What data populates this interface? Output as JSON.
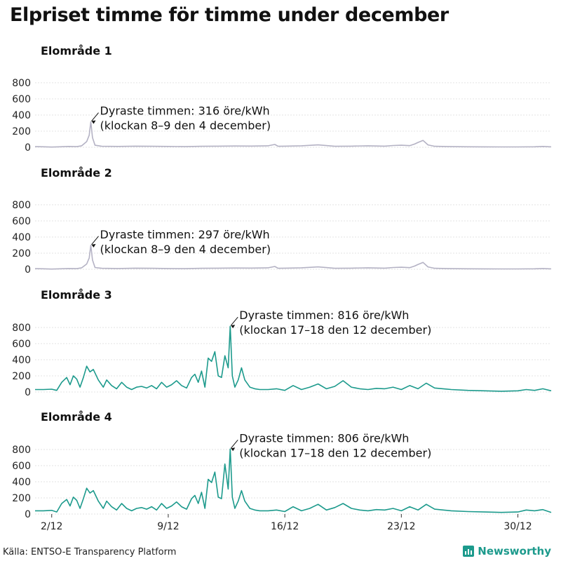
{
  "title": "Elpriset timme för timme under december",
  "source": "Källa: ENTSO-E Transparency Platform",
  "brand": "Newsworthy",
  "colors": {
    "highlight": "#1c9a8c",
    "muted": "#b4b2c4",
    "brand": "#1c9a8c"
  },
  "chart_data": [
    {
      "type": "line",
      "title": "Elområde 1",
      "color": "#b4b2c4",
      "ylim": [
        0,
        800
      ],
      "yticks": [
        0,
        200,
        400,
        600,
        800
      ],
      "xlim": [
        1,
        32
      ],
      "xticks": [
        2,
        9,
        16,
        23,
        30
      ],
      "xticklabels": [
        "2/12",
        "9/12",
        "16/12",
        "23/12",
        "30/12"
      ],
      "annotation": {
        "x": 4.35,
        "y": 316,
        "line1": "Dyraste timmen: 316 öre/kWh",
        "line2": "(klockan 8–9 den 4 december)"
      },
      "series": [
        {
          "x": [
            1,
            1.5,
            2,
            2.5,
            3,
            3.5,
            3.8,
            4.1,
            4.25,
            4.35,
            4.45,
            4.6,
            5,
            6,
            7,
            8,
            9,
            10,
            11,
            12,
            13,
            14,
            15,
            15.4,
            15.6,
            16,
            17,
            18,
            19,
            20,
            21,
            22,
            22.5,
            23,
            23.5,
            23.8,
            24,
            24.3,
            24.6,
            25,
            26,
            27,
            28,
            29,
            30,
            31,
            31.5,
            32
          ],
          "y": [
            8,
            6,
            3,
            6,
            10,
            8,
            18,
            70,
            150,
            316,
            120,
            25,
            12,
            10,
            14,
            12,
            10,
            8,
            12,
            14,
            16,
            15,
            18,
            35,
            12,
            14,
            18,
            30,
            12,
            14,
            18,
            14,
            22,
            25,
            20,
            40,
            60,
            85,
            30,
            12,
            8,
            6,
            5,
            4,
            4,
            6,
            10,
            5
          ]
        }
      ]
    },
    {
      "type": "line",
      "title": "Elområde 2",
      "color": "#b4b2c4",
      "ylim": [
        0,
        800
      ],
      "yticks": [
        0,
        200,
        400,
        600,
        800
      ],
      "xlim": [
        1,
        32
      ],
      "xticks": [
        2,
        9,
        16,
        23,
        30
      ],
      "xticklabels": [
        "2/12",
        "9/12",
        "16/12",
        "23/12",
        "30/12"
      ],
      "annotation": {
        "x": 4.35,
        "y": 297,
        "line1": "Dyraste timmen: 297 öre/kWh",
        "line2": "(klockan 8–9 den 4 december)"
      },
      "series": [
        {
          "x": [
            1,
            1.5,
            2,
            2.5,
            3,
            3.5,
            3.8,
            4.1,
            4.25,
            4.35,
            4.45,
            4.6,
            5,
            6,
            7,
            8,
            9,
            10,
            11,
            12,
            13,
            14,
            15,
            15.4,
            15.6,
            16,
            17,
            18,
            19,
            20,
            21,
            22,
            22.5,
            23,
            23.5,
            23.8,
            24,
            24.3,
            24.6,
            25,
            26,
            27,
            28,
            29,
            30,
            31,
            31.5,
            32
          ],
          "y": [
            8,
            6,
            3,
            6,
            10,
            8,
            18,
            65,
            140,
            297,
            115,
            22,
            12,
            10,
            14,
            12,
            10,
            8,
            12,
            14,
            16,
            15,
            18,
            35,
            12,
            14,
            18,
            30,
            12,
            14,
            18,
            14,
            22,
            25,
            20,
            40,
            60,
            85,
            30,
            12,
            8,
            6,
            5,
            4,
            4,
            6,
            10,
            5
          ]
        }
      ]
    },
    {
      "type": "line",
      "title": "Elområde 3",
      "color": "#1c9a8c",
      "ylim": [
        0,
        800
      ],
      "yticks": [
        0,
        200,
        400,
        600,
        800
      ],
      "xlim": [
        1,
        32
      ],
      "xticks": [
        2,
        9,
        16,
        23,
        30
      ],
      "xticklabels": [
        "2/12",
        "9/12",
        "16/12",
        "23/12",
        "30/12"
      ],
      "annotation": {
        "x": 12.72,
        "y": 816,
        "line1": "Dyraste timmen: 816 öre/kWh",
        "line2": "(klockan 17–18 den 12 december)"
      },
      "series": [
        {
          "x": [
            1,
            1.5,
            2,
            2.3,
            2.6,
            2.9,
            3.1,
            3.3,
            3.5,
            3.7,
            3.9,
            4.1,
            4.3,
            4.5,
            4.8,
            5.1,
            5.3,
            5.6,
            5.9,
            6.2,
            6.5,
            6.8,
            7.1,
            7.4,
            7.7,
            8.0,
            8.3,
            8.6,
            8.9,
            9.2,
            9.5,
            9.8,
            10.1,
            10.4,
            10.6,
            10.8,
            11.0,
            11.2,
            11.4,
            11.6,
            11.8,
            12.0,
            12.2,
            12.4,
            12.6,
            12.72,
            12.85,
            13.0,
            13.2,
            13.4,
            13.6,
            13.9,
            14.2,
            14.5,
            15.0,
            15.5,
            16,
            16.5,
            17,
            17.5,
            18,
            18.5,
            19,
            19.5,
            20,
            20.5,
            21,
            21.5,
            22,
            22.5,
            23,
            23.5,
            24,
            24.5,
            25,
            26,
            27,
            28,
            29,
            30,
            30.5,
            31,
            31.5,
            32
          ],
          "y": [
            30,
            30,
            35,
            20,
            120,
            180,
            90,
            200,
            160,
            60,
            180,
            320,
            250,
            280,
            150,
            60,
            150,
            80,
            40,
            120,
            60,
            30,
            60,
            70,
            50,
            80,
            40,
            120,
            60,
            90,
            140,
            80,
            50,
            180,
            220,
            120,
            260,
            60,
            420,
            380,
            500,
            200,
            180,
            450,
            300,
            816,
            200,
            60,
            150,
            300,
            150,
            60,
            40,
            30,
            30,
            40,
            20,
            80,
            30,
            60,
            100,
            40,
            70,
            140,
            60,
            40,
            30,
            45,
            40,
            60,
            30,
            80,
            40,
            110,
            50,
            30,
            20,
            15,
            10,
            15,
            30,
            20,
            40,
            15
          ]
        }
      ]
    },
    {
      "type": "line",
      "title": "Elområde 4",
      "color": "#1c9a8c",
      "ylim": [
        0,
        800
      ],
      "yticks": [
        0,
        200,
        400,
        600,
        800
      ],
      "xlim": [
        1,
        32
      ],
      "xticks": [
        2,
        9,
        16,
        23,
        30
      ],
      "xticklabels": [
        "2/12",
        "9/12",
        "16/12",
        "23/12",
        "30/12"
      ],
      "annotation": {
        "x": 12.72,
        "y": 806,
        "line1": "Dyraste timmen: 806 öre/kWh",
        "line2": "(klockan 17–18 den 12 december)"
      },
      "series": [
        {
          "x": [
            1,
            1.5,
            2,
            2.3,
            2.6,
            2.9,
            3.1,
            3.3,
            3.5,
            3.7,
            3.9,
            4.1,
            4.3,
            4.5,
            4.8,
            5.1,
            5.3,
            5.6,
            5.9,
            6.2,
            6.5,
            6.8,
            7.1,
            7.4,
            7.7,
            8.0,
            8.3,
            8.6,
            8.9,
            9.2,
            9.5,
            9.8,
            10.1,
            10.4,
            10.6,
            10.8,
            11.0,
            11.2,
            11.4,
            11.6,
            11.8,
            12.0,
            12.2,
            12.4,
            12.6,
            12.72,
            12.85,
            13.0,
            13.2,
            13.4,
            13.6,
            13.9,
            14.2,
            14.5,
            15.0,
            15.5,
            16,
            16.5,
            17,
            17.5,
            18,
            18.5,
            19,
            19.5,
            20,
            20.5,
            21,
            21.5,
            22,
            22.5,
            23,
            23.5,
            24,
            24.5,
            25,
            26,
            27,
            28,
            29,
            30,
            30.5,
            31,
            31.5,
            32
          ],
          "y": [
            40,
            40,
            45,
            25,
            130,
            180,
            100,
            210,
            170,
            70,
            190,
            320,
            260,
            290,
            160,
            70,
            160,
            90,
            50,
            130,
            70,
            40,
            70,
            80,
            60,
            90,
            50,
            130,
            70,
            100,
            150,
            90,
            60,
            190,
            230,
            130,
            270,
            70,
            430,
            390,
            520,
            210,
            190,
            620,
            310,
            806,
            210,
            70,
            160,
            290,
            160,
            70,
            50,
            40,
            40,
            50,
            30,
            90,
            40,
            70,
            120,
            50,
            80,
            130,
            70,
            50,
            40,
            55,
            50,
            70,
            40,
            90,
            50,
            120,
            60,
            40,
            30,
            25,
            20,
            25,
            50,
            40,
            55,
            20
          ]
        }
      ]
    }
  ]
}
